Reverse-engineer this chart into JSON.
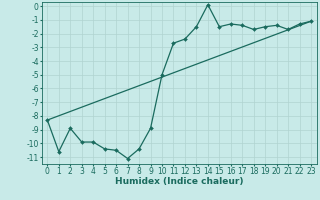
{
  "xlabel": "Humidex (Indice chaleur)",
  "background_color": "#c8eae8",
  "grid_color": "#b0d4d0",
  "line_color": "#1a6b5e",
  "xlim": [
    -0.5,
    23.5
  ],
  "ylim": [
    -11.5,
    0.3
  ],
  "yticks": [
    0,
    -1,
    -2,
    -3,
    -4,
    -5,
    -6,
    -7,
    -8,
    -9,
    -10,
    -11
  ],
  "xticks": [
    0,
    1,
    2,
    3,
    4,
    5,
    6,
    7,
    8,
    9,
    10,
    11,
    12,
    13,
    14,
    15,
    16,
    17,
    18,
    19,
    20,
    21,
    22,
    23
  ],
  "curve1_x": [
    0,
    1,
    2,
    3,
    4,
    5,
    6,
    7,
    8,
    9,
    10,
    11,
    12,
    13,
    14,
    15,
    16,
    17,
    18,
    19,
    20,
    21,
    22,
    23
  ],
  "curve1_y": [
    -8.3,
    -10.6,
    -8.9,
    -9.9,
    -9.9,
    -10.4,
    -10.5,
    -11.1,
    -10.4,
    -8.9,
    -5.0,
    -2.7,
    -2.4,
    -1.5,
    0.1,
    -1.5,
    -1.3,
    -1.4,
    -1.7,
    -1.5,
    -1.4,
    -1.7,
    -1.3,
    -1.1
  ],
  "curve2_x": [
    0,
    23
  ],
  "curve2_y": [
    -8.3,
    -1.1
  ],
  "font_color": "#1a6b5e",
  "tick_fontsize": 5.5,
  "xlabel_fontsize": 6.5,
  "marker_size": 2.0,
  "linewidth": 0.9
}
